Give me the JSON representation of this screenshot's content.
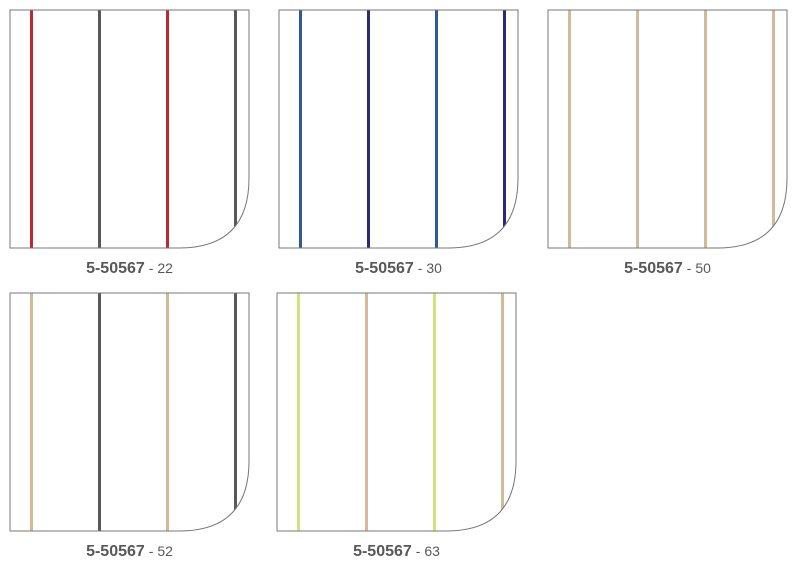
{
  "swatches": [
    {
      "code": "5-50567",
      "suffix": "- 22",
      "stripes": [
        "#c0282f",
        "#58585a",
        "#c0282f",
        "#58585a"
      ]
    },
    {
      "code": "5-50567",
      "suffix": "- 30",
      "stripes": [
        "#2c5b98",
        "#2b2a78",
        "#2c5b98",
        "#2b2a78"
      ]
    },
    {
      "code": "5-50567",
      "suffix": "- 50",
      "stripes": [
        "#d3b998",
        "#d3b998",
        "#d3b998",
        "#d3b998"
      ]
    },
    {
      "code": "5-50567",
      "suffix": "- 52",
      "stripes": [
        "#d3b998",
        "#58585a",
        "#d3b998",
        "#58585a"
      ]
    },
    {
      "code": "5-50567",
      "suffix": "- 63",
      "stripes": [
        "#d3e27a",
        "#d3b998",
        "#d3e27a",
        "#d3b998"
      ]
    }
  ]
}
